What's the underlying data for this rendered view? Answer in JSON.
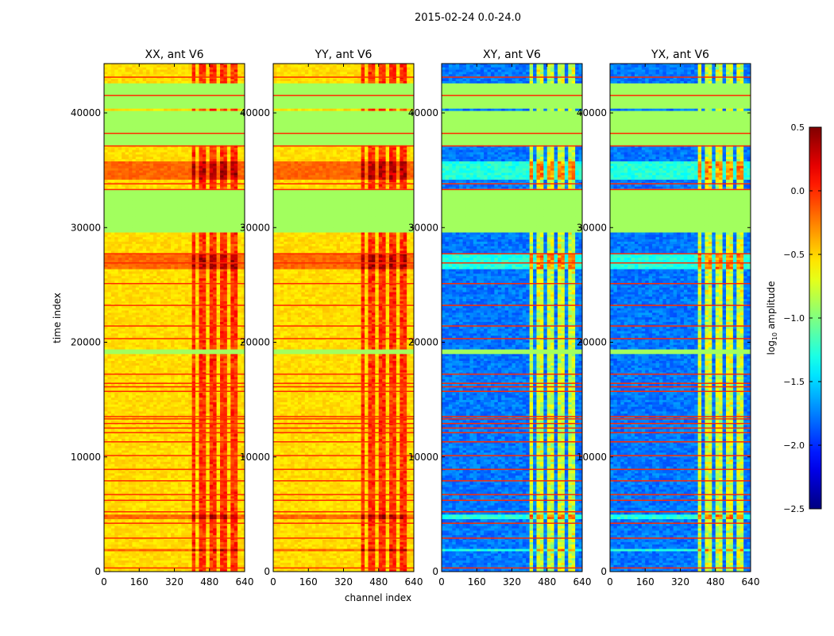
{
  "chart_data": {
    "type": "heatmap",
    "title": "2015-02-24 0.0-24.0",
    "xlabel": "channel index",
    "ylabel": "time index",
    "xlim": [
      0,
      640
    ],
    "ylim": [
      0,
      44300
    ],
    "xticks": [
      "0",
      "160",
      "320",
      "480",
      "640"
    ],
    "xtick_values": [
      0,
      160,
      320,
      480,
      640
    ],
    "yticks": [
      "0",
      "10000",
      "20000",
      "30000",
      "40000"
    ],
    "ytick_values": [
      0,
      10000,
      20000,
      30000,
      40000
    ],
    "panels": [
      {
        "title": "XX, ant V6",
        "kind": "parallel",
        "show_ylabel": true
      },
      {
        "title": "YY, ant V6",
        "kind": "parallel",
        "show_xlabel": true
      },
      {
        "title": "XY, ant V6",
        "kind": "cross"
      },
      {
        "title": "YX, ant V6",
        "kind": "cross"
      }
    ],
    "flagged_time_ranges": [
      [
        29580,
        33400
      ],
      [
        37150,
        40140
      ],
      [
        40350,
        42430
      ],
      [
        18900,
        19300
      ]
    ],
    "bright_time_ranges": [
      [
        34200,
        35800
      ],
      [
        26300,
        27800
      ],
      [
        1700,
        2000
      ],
      [
        4500,
        5000
      ]
    ],
    "red_line_times": [
      300,
      2900,
      4200,
      5200,
      6200,
      6700,
      7900,
      8900,
      10100,
      11300,
      12100,
      12500,
      12900,
      13300,
      13500,
      15700,
      16100,
      16400,
      17200,
      20300,
      21400,
      23200,
      25100,
      26900,
      27700,
      33300,
      33800,
      37100,
      38200,
      41500,
      43100
    ],
    "colorbar": {
      "label": "log10 amplitude",
      "label_main": "log",
      "label_sub": "10",
      "label_rest": " amplitude",
      "range": [
        -2.5,
        0.5
      ],
      "ticks": [
        "0.5",
        "0.0",
        "−0.5",
        "−1.0",
        "−1.5",
        "−2.0",
        "−2.5"
      ],
      "tick_values": [
        0.5,
        0.0,
        -0.5,
        -1.0,
        -1.5,
        -2.0,
        -2.5
      ],
      "colormap": "jet"
    }
  }
}
